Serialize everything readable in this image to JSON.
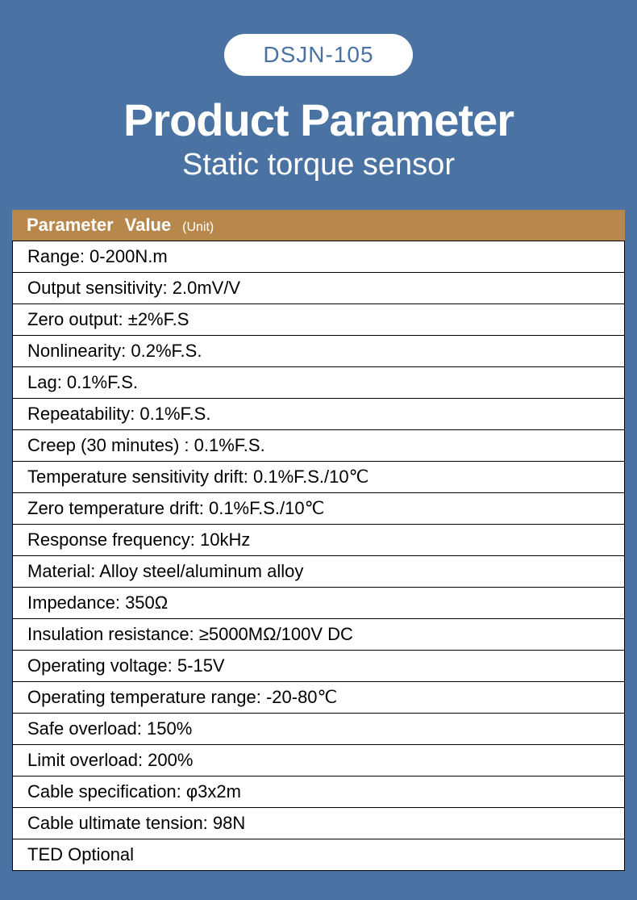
{
  "colors": {
    "background": "#4a72a2",
    "pill_bg": "#ffffff",
    "pill_text": "#4a72a2",
    "title_text": "#ffffff",
    "thead_bg": "#b8874c",
    "thead_text": "#ffffff",
    "row_bg": "#ffffff",
    "row_text": "#000000",
    "border": "#000000"
  },
  "typography": {
    "pill_fontsize": 28,
    "title_fontsize": 56,
    "title_weight": 700,
    "subtitle_fontsize": 38,
    "subtitle_weight": 300,
    "thead_fontsize": 22,
    "unit_fontsize": 16,
    "row_fontsize": 22
  },
  "header": {
    "model": "DSJN-105",
    "title": "Product Parameter",
    "subtitle": "Static torque sensor"
  },
  "table": {
    "head": {
      "col1": "Parameter",
      "col2": "Value",
      "unit": "(Unit)"
    },
    "rows": [
      "Range: 0-200N.m",
      "Output sensitivity: 2.0mV/V",
      "Zero output: ±2%F.S",
      "Nonlinearity: 0.2%F.S.",
      "Lag: 0.1%F.S.",
      "Repeatability: 0.1%F.S.",
      "Creep (30 minutes) : 0.1%F.S.",
      "Temperature sensitivity drift: 0.1%F.S./10℃",
      "Zero temperature drift: 0.1%F.S./10℃",
      "Response frequency: 10kHz",
      "Material: Alloy steel/aluminum alloy",
      "Impedance: 350Ω",
      "Insulation resistance: ≥5000MΩ/100V DC",
      "Operating voltage: 5-15V",
      "Operating temperature range: -20-80℃",
      "Safe overload: 150%",
      "Limit overload: 200%",
      "Cable specification: φ3x2m",
      "Cable ultimate tension: 98N",
      "TED Optional"
    ]
  }
}
